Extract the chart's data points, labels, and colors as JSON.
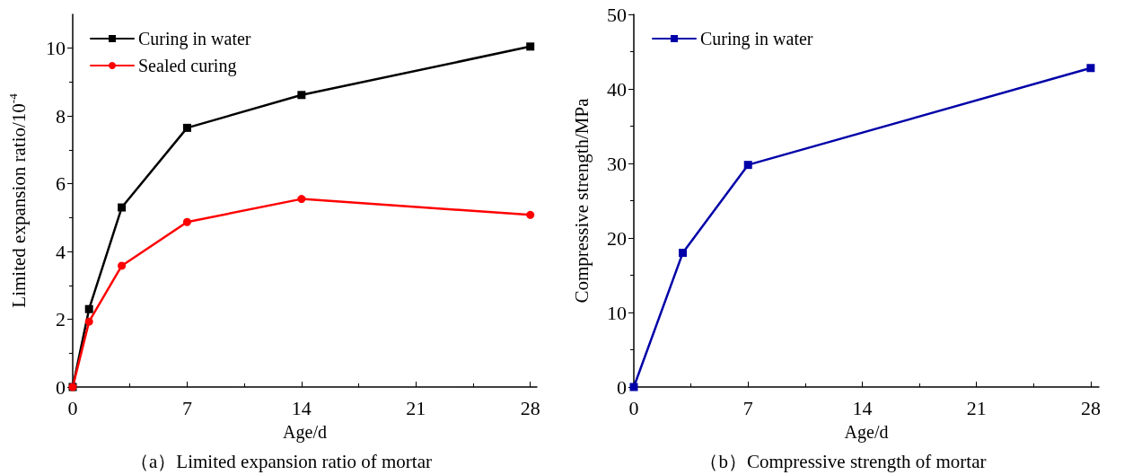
{
  "chart_data": [
    {
      "type": "line",
      "title": "（a）Limited expansion ratio of mortar",
      "xlabel": "Age/d",
      "ylabel": "Limited expansion ratio/10$^{-4}$",
      "x": [
        0,
        1,
        3,
        7,
        14,
        28
      ],
      "series": [
        {
          "name": "Curing in water",
          "color": "#000000",
          "marker": "square",
          "values": [
            0,
            2.3,
            5.3,
            7.65,
            8.62,
            10.05
          ]
        },
        {
          "name": "Sealed curing",
          "color": "#ff0000",
          "marker": "circle",
          "values": [
            0,
            1.93,
            3.58,
            4.87,
            5.55,
            5.08
          ]
        }
      ],
      "xlim": [
        0,
        28.4
      ],
      "xticks": [
        0,
        7,
        14,
        21,
        28
      ],
      "ylim": [
        0,
        11
      ],
      "yticks": [
        0,
        2,
        4,
        6,
        8,
        10
      ],
      "grid": false,
      "legend": "top left",
      "line_style": "solid"
    },
    {
      "type": "line",
      "title": "（b）Compressive strength of mortar",
      "xlabel": "Age/d",
      "ylabel": "Compressive strength/MPa",
      "x": [
        0,
        3,
        7,
        28
      ],
      "series": [
        {
          "name": "Curing in water",
          "color": "#0000a8",
          "marker": "square",
          "values": [
            0,
            18,
            29.8,
            42.8
          ]
        }
      ],
      "xlim": [
        0,
        28.5
      ],
      "xticks": [
        0,
        7,
        14,
        21,
        28
      ],
      "ylim": [
        0,
        50
      ],
      "yticks": [
        0,
        10,
        20,
        30,
        40,
        50
      ],
      "grid": false,
      "legend": "top left",
      "line_style": "solid"
    }
  ]
}
